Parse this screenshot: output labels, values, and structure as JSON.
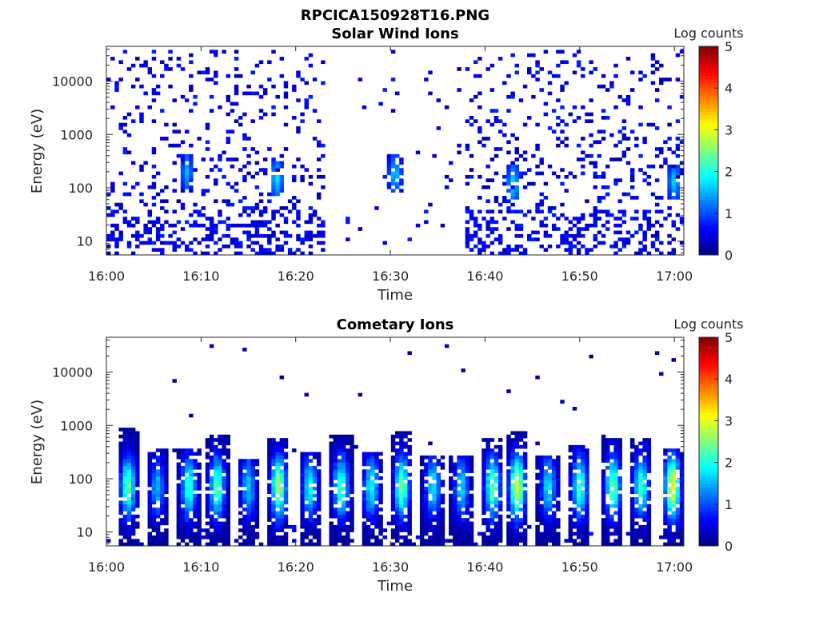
{
  "figure": {
    "title": "RPCICA150928T16.PNG"
  },
  "colormap": "jet",
  "chart_data": [
    {
      "type": "heatmap",
      "title": "Solar Wind Ions",
      "xlabel": "Time",
      "ylabel": "Energy (eV)",
      "x_ticks": [
        "16:00",
        "16:10",
        "16:20",
        "16:30",
        "16:40",
        "16:50",
        "17:00"
      ],
      "xlim_minutes": [
        0,
        61
      ],
      "y_scale": "log",
      "y_ticks": [
        "10",
        "100",
        "1000",
        "10000"
      ],
      "ylim": [
        5.5,
        45000
      ],
      "colorbar": {
        "label": "Log counts",
        "range": [
          0,
          5
        ],
        "ticks": [
          "0",
          "1",
          "2",
          "3",
          "4",
          "5"
        ]
      },
      "description_of_values": "Sparse low counts (log 0-1) scattered across 10-30000 eV except a gap 16:23-16:38; localized log ~1.5-2 blobs near 100-300 eV at 16:08, 16:18, 16:30, 16:43, 17:00",
      "hot_spots": [
        {
          "t": 8.5,
          "e": 200,
          "v": 1.6
        },
        {
          "t": 18.0,
          "e": 150,
          "v": 1.9
        },
        {
          "t": 30.5,
          "e": 180,
          "v": 1.8
        },
        {
          "t": 43.0,
          "e": 120,
          "v": 1.9
        },
        {
          "t": 60.0,
          "e": 130,
          "v": 1.8
        }
      ]
    },
    {
      "type": "heatmap",
      "title": "Cometary Ions",
      "xlabel": "Time",
      "ylabel": "Energy (eV)",
      "x_ticks": [
        "16:00",
        "16:10",
        "16:20",
        "16:30",
        "16:40",
        "16:50",
        "17:00"
      ],
      "xlim_minutes": [
        0,
        61
      ],
      "y_scale": "log",
      "y_ticks": [
        "10",
        "100",
        "1000",
        "10000"
      ],
      "ylim": [
        5.5,
        45000
      ],
      "colorbar": {
        "label": "Log counts",
        "range": [
          0,
          5
        ],
        "ticks": [
          "0",
          "1",
          "2",
          "3",
          "4",
          "5"
        ]
      },
      "description_of_values": "Periodic bursts of cometary ions roughly every 3 minutes, spanning ~10-800 eV, peak log counts ~2-3 near 50-200 eV",
      "bursts": [
        {
          "t": 2.3,
          "peak": 2.3,
          "top": 900
        },
        {
          "t": 5.4,
          "peak": 1.5,
          "top": 350
        },
        {
          "t": 8.7,
          "peak": 2.1,
          "top": 350
        },
        {
          "t": 11.7,
          "peak": 2.3,
          "top": 700
        },
        {
          "t": 15.0,
          "peak": 1.6,
          "top": 250
        },
        {
          "t": 18.2,
          "peak": 2.7,
          "top": 600
        },
        {
          "t": 21.5,
          "peak": 1.9,
          "top": 300
        },
        {
          "t": 24.8,
          "peak": 2.2,
          "top": 650
        },
        {
          "t": 28.0,
          "peak": 1.9,
          "top": 300
        },
        {
          "t": 31.2,
          "peak": 2.4,
          "top": 750
        },
        {
          "t": 34.5,
          "peak": 1.8,
          "top": 260
        },
        {
          "t": 37.5,
          "peak": 1.7,
          "top": 260
        },
        {
          "t": 40.8,
          "peak": 2.4,
          "top": 600
        },
        {
          "t": 43.4,
          "peak": 2.9,
          "top": 800
        },
        {
          "t": 46.7,
          "peak": 1.8,
          "top": 260
        },
        {
          "t": 50.0,
          "peak": 2.2,
          "top": 450
        },
        {
          "t": 53.5,
          "peak": 2.4,
          "top": 550
        },
        {
          "t": 56.5,
          "peak": 2.2,
          "top": 600
        },
        {
          "t": 59.8,
          "peak": 3.1,
          "top": 350
        }
      ]
    }
  ]
}
